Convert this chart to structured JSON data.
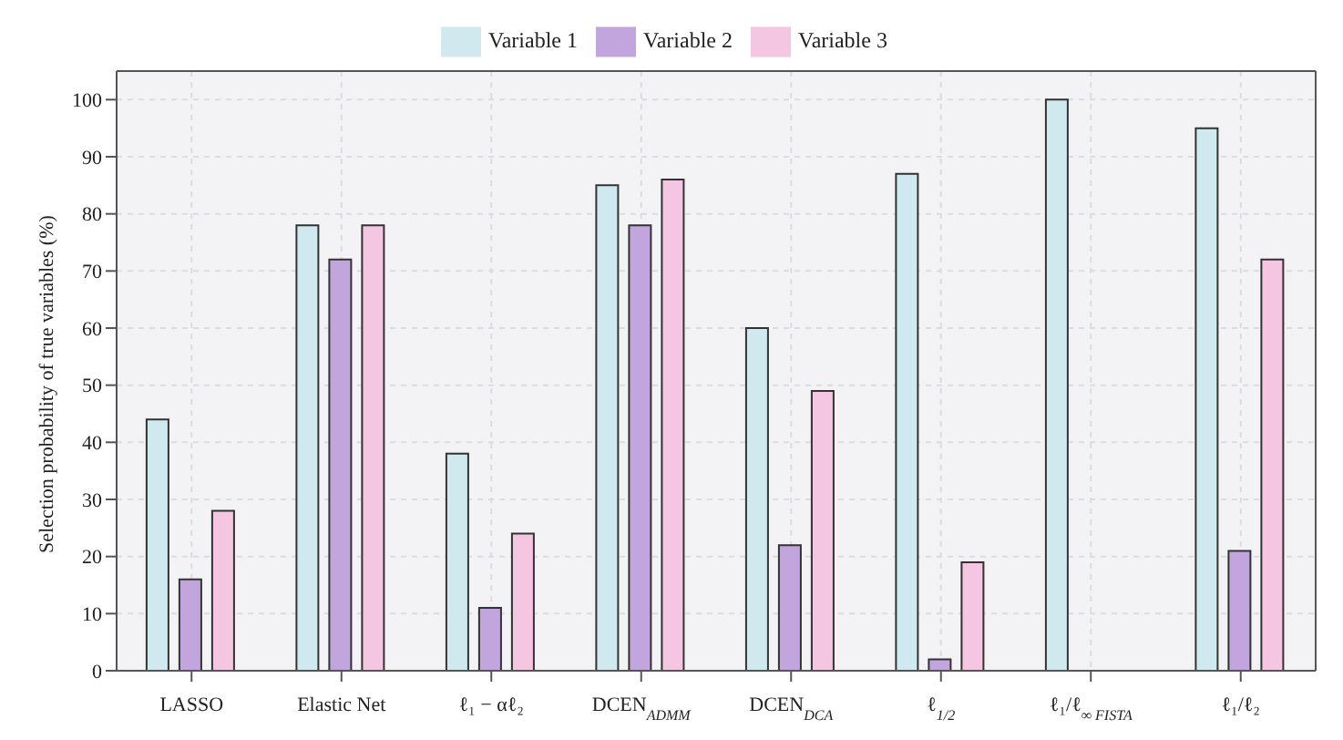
{
  "chart_data": {
    "type": "bar",
    "ylabel": "Selection probability of true variables (%)",
    "categories": [
      "LASSO",
      "Elastic Net",
      "ℓ₁ − αℓ₂",
      "DCEN$_{ADMM}$",
      "DCEN$_{DCA}$",
      "ℓ$_{1/2}$",
      "ℓ₁/ℓ$_{∞ FISTA}$",
      "ℓ₁/ℓ₂"
    ],
    "series": [
      {
        "name": "Variable 1",
        "color": "#d0e9ef",
        "values": [
          44,
          78,
          38,
          85,
          60,
          87,
          100,
          95
        ]
      },
      {
        "name": "Variable 2",
        "color": "#c3a5dd",
        "values": [
          16,
          72,
          11,
          78,
          22,
          2,
          0,
          21
        ]
      },
      {
        "name": "Variable 3",
        "color": "#f4c6e2",
        "values": [
          28,
          78,
          24,
          86,
          49,
          19,
          0,
          72
        ]
      }
    ],
    "ylim": [
      0,
      105
    ],
    "yticks": [
      0,
      10,
      20,
      30,
      40,
      50,
      60,
      70,
      80,
      90,
      100
    ],
    "grid": true,
    "legend": "top"
  }
}
